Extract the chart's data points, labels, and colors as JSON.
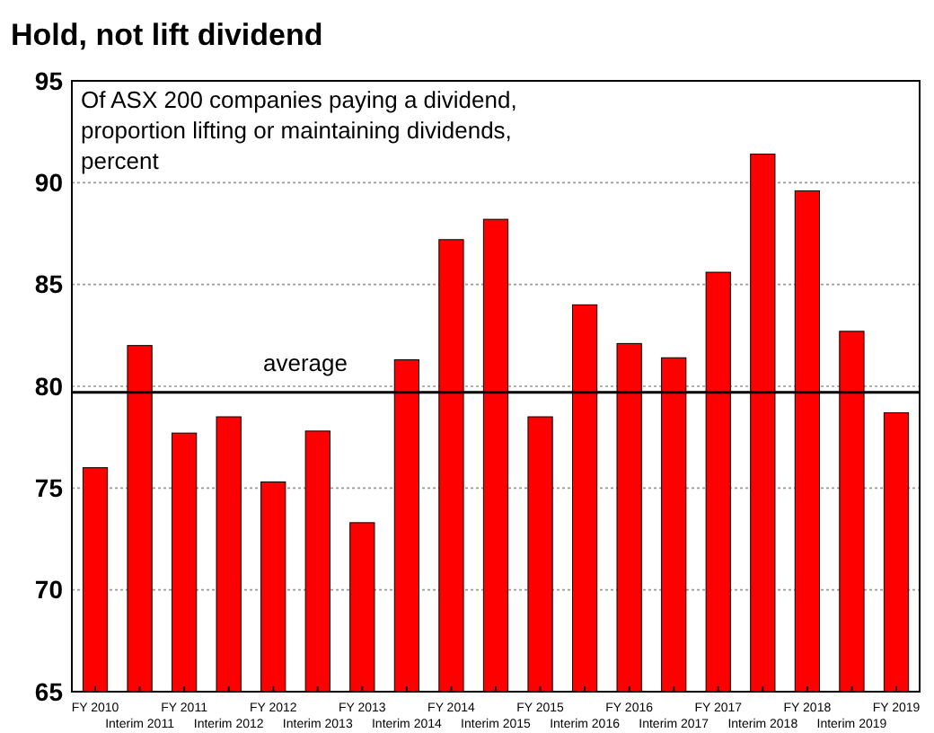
{
  "chart_data": {
    "type": "bar",
    "title": "Hold, not lift dividend",
    "subtitle": "Of ASX 200 companies paying a dividend, proportion lifting or maintaining dividends, percent",
    "categories": [
      "FY 2010",
      "Interim 2011",
      "FY 2011",
      "Interim 2012",
      "FY 2012",
      "Interim 2013",
      "FY 2013",
      "Interim 2014",
      "FY 2014",
      "Interim 2015",
      "FY 2015",
      "Interim 2016",
      "FY 2016",
      "Interim 2017",
      "FY 2017",
      "Interim 2018",
      "FY 2018",
      "Interim 2019",
      "FY 2019"
    ],
    "values": [
      76,
      82,
      77.7,
      78.5,
      75.3,
      77.8,
      73.3,
      81.3,
      87.2,
      88.2,
      78.5,
      84,
      82.1,
      81.4,
      85.6,
      91.4,
      89.6,
      82.7,
      78.7
    ],
    "color": "#ff0000",
    "ylim": [
      65,
      95
    ],
    "yticks": [
      65,
      70,
      75,
      80,
      85,
      90,
      95
    ],
    "grid": "y",
    "ref_lines": [
      {
        "axis": "y",
        "value": 79.7,
        "label": "average",
        "color": "#000000"
      }
    ]
  }
}
